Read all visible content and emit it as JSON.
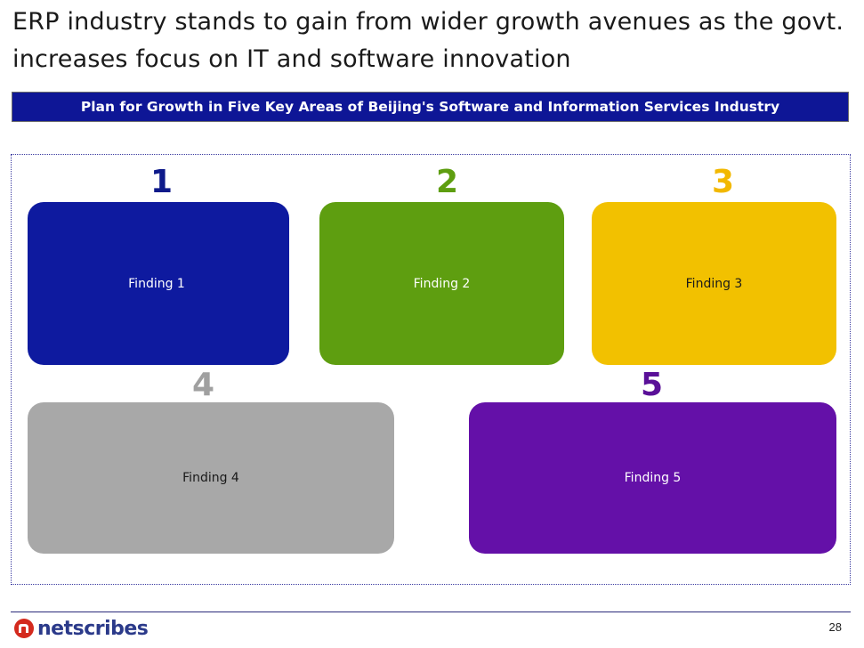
{
  "slide": {
    "title": "ERP industry stands to gain from wider growth avenues as the govt. increases focus on IT and software innovation",
    "banner": "Plan for Growth in Five Key Areas of Beijing's Software and Information Services Industry",
    "page_number": "28"
  },
  "findings": [
    {
      "number": "1",
      "label": "Finding 1",
      "color": "#0e1a9f",
      "text_color": "#ffffff"
    },
    {
      "number": "2",
      "label": "Finding 2",
      "color": "#5e9e10",
      "text_color": "#ffffff"
    },
    {
      "number": "3",
      "label": "Finding 3",
      "color": "#f2c100",
      "text_color": "#1a1a1a"
    },
    {
      "number": "4",
      "label": "Finding 4",
      "color": "#a8a8a8",
      "text_color": "#1a1a1a"
    },
    {
      "number": "5",
      "label": "Finding 5",
      "color": "#6410a8",
      "text_color": "#ffffff"
    }
  ],
  "number_colors": [
    "#0e1a8a",
    "#5e9e10",
    "#f2b800",
    "#a0a0a0",
    "#5a1098"
  ],
  "logo": {
    "text": "netscribes",
    "icon": "netscribes-logo-icon"
  }
}
